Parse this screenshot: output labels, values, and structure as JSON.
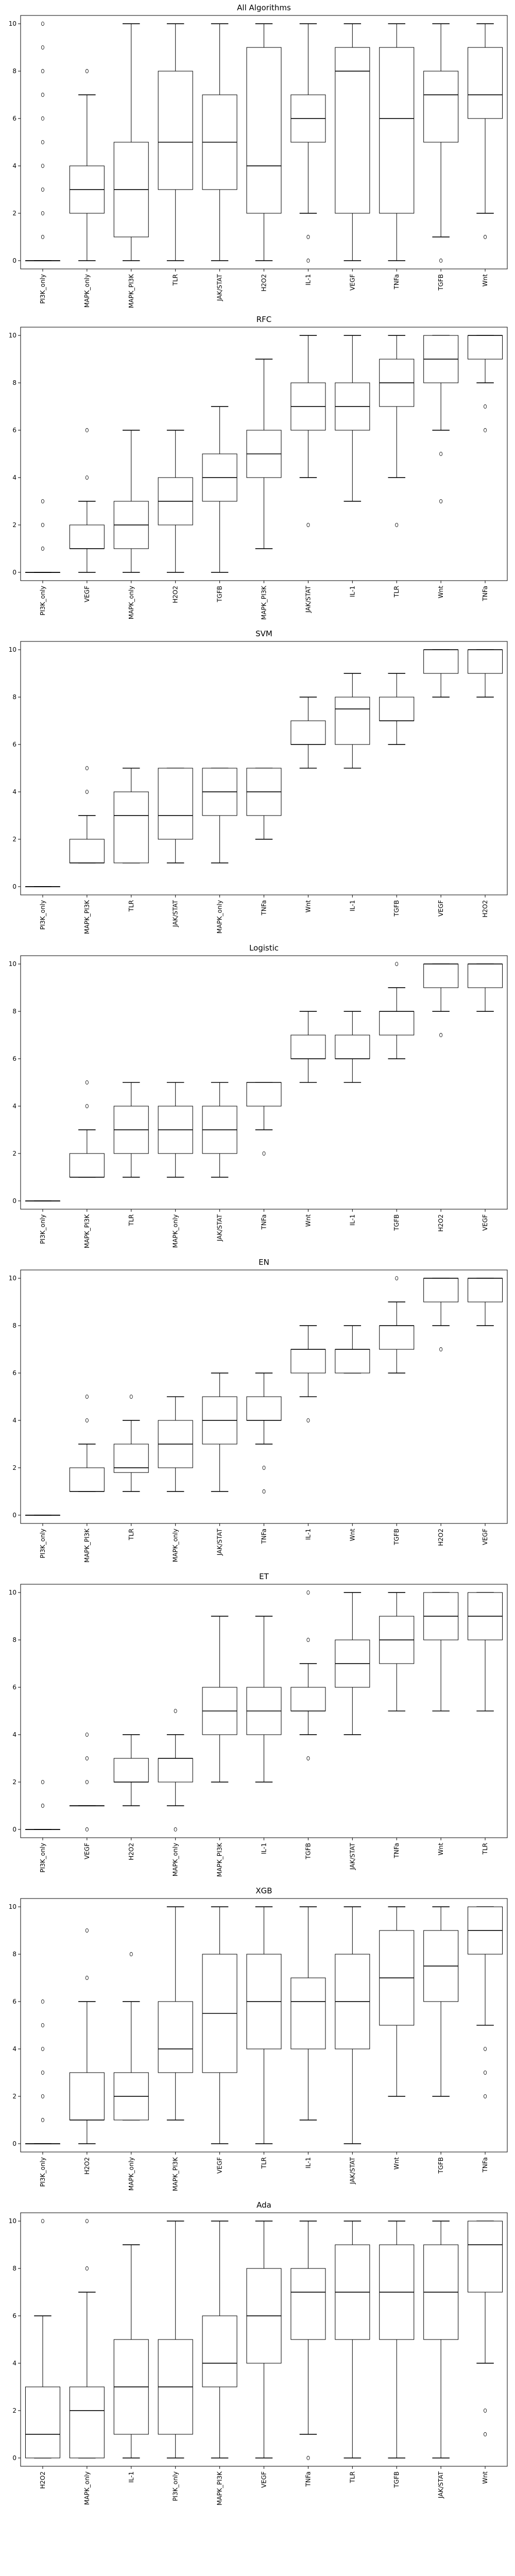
{
  "chart_data": [
    {
      "type": "box",
      "title": "All Algorithms",
      "ylim": [
        0,
        10
      ],
      "yticks": [
        "0",
        "2",
        "4",
        "6",
        "8",
        "10"
      ],
      "categories": [
        "PI3K_only",
        "MAPK_only",
        "MAPK_PI3K",
        "TLR",
        "JAK/STAT",
        "H2O2",
        "IL-1",
        "VEGF",
        "TNFa",
        "TGFB",
        "Wnt"
      ],
      "boxes": [
        {
          "whislo": 0,
          "q1": 0,
          "med": 0,
          "q3": 0,
          "whishi": 0,
          "fliers": [
            1,
            2,
            3,
            4,
            5,
            6,
            7,
            8,
            9,
            10
          ]
        },
        {
          "whislo": 0,
          "q1": 2,
          "med": 3,
          "q3": 4,
          "whishi": 7,
          "fliers": [
            8
          ]
        },
        {
          "whislo": 0,
          "q1": 1,
          "med": 3,
          "q3": 5,
          "whishi": 10,
          "fliers": []
        },
        {
          "whislo": 0,
          "q1": 3,
          "med": 5,
          "q3": 8,
          "whishi": 10,
          "fliers": []
        },
        {
          "whislo": 0,
          "q1": 3,
          "med": 5,
          "q3": 7,
          "whishi": 10,
          "fliers": []
        },
        {
          "whislo": 0,
          "q1": 2,
          "med": 4,
          "q3": 9,
          "whishi": 10,
          "fliers": []
        },
        {
          "whislo": 2,
          "q1": 5,
          "med": 6,
          "q3": 7,
          "whishi": 10,
          "fliers": [
            0,
            1
          ]
        },
        {
          "whislo": 0,
          "q1": 2,
          "med": 8,
          "q3": 9,
          "whishi": 10,
          "fliers": []
        },
        {
          "whislo": 0,
          "q1": 2,
          "med": 6,
          "q3": 9,
          "whishi": 10,
          "fliers": []
        },
        {
          "whislo": 1,
          "q1": 5,
          "med": 7,
          "q3": 8,
          "whishi": 10,
          "fliers": [
            0
          ]
        },
        {
          "whislo": 2,
          "q1": 6,
          "med": 7,
          "q3": 9,
          "whishi": 10,
          "fliers": [
            1
          ]
        }
      ]
    },
    {
      "type": "box",
      "title": "RFC",
      "ylim": [
        0,
        10
      ],
      "yticks": [
        "0",
        "2",
        "4",
        "6",
        "8",
        "10"
      ],
      "categories": [
        "PI3K_only",
        "VEGF",
        "MAPK_only",
        "H2O2",
        "TGFB",
        "MAPK_PI3K",
        "JAK/STAT",
        "IL-1",
        "TLR",
        "Wnt",
        "TNFa"
      ],
      "boxes": [
        {
          "whislo": 0,
          "q1": 0,
          "med": 0,
          "q3": 0,
          "whishi": 0,
          "fliers": [
            1,
            2,
            3
          ]
        },
        {
          "whislo": 0,
          "q1": 1,
          "med": 1,
          "q3": 2,
          "whishi": 3,
          "fliers": [
            4,
            6
          ]
        },
        {
          "whislo": 0,
          "q1": 1,
          "med": 2,
          "q3": 3,
          "whishi": 6,
          "fliers": []
        },
        {
          "whislo": 0,
          "q1": 2,
          "med": 3,
          "q3": 4,
          "whishi": 6,
          "fliers": []
        },
        {
          "whislo": 0,
          "q1": 3,
          "med": 4,
          "q3": 5,
          "whishi": 7,
          "fliers": []
        },
        {
          "whislo": 1,
          "q1": 4,
          "med": 5,
          "q3": 6,
          "whishi": 9,
          "fliers": []
        },
        {
          "whislo": 4,
          "q1": 6,
          "med": 7,
          "q3": 8,
          "whishi": 10,
          "fliers": [
            2
          ]
        },
        {
          "whislo": 3,
          "q1": 6,
          "med": 7,
          "q3": 8,
          "whishi": 10,
          "fliers": []
        },
        {
          "whislo": 4,
          "q1": 7,
          "med": 8,
          "q3": 9,
          "whishi": 10,
          "fliers": [
            2
          ]
        },
        {
          "whislo": 6,
          "q1": 8,
          "med": 9,
          "q3": 10,
          "whishi": 10,
          "fliers": [
            3,
            5
          ]
        },
        {
          "whislo": 8,
          "q1": 9,
          "med": 10,
          "q3": 10,
          "whishi": 10,
          "fliers": [
            6,
            7
          ]
        }
      ]
    },
    {
      "type": "box",
      "title": "SVM",
      "ylim": [
        0,
        10
      ],
      "yticks": [
        "0",
        "2",
        "4",
        "6",
        "8",
        "10"
      ],
      "categories": [
        "PI3K_only",
        "MAPK_PI3K",
        "TLR",
        "JAK/STAT",
        "MAPK_only",
        "TNFa",
        "Wnt",
        "IL-1",
        "TGFB",
        "VEGF",
        "H2O2"
      ],
      "boxes": [
        {
          "whislo": 0,
          "q1": 0,
          "med": 0,
          "q3": 0,
          "whishi": 0,
          "fliers": []
        },
        {
          "whislo": 1,
          "q1": 1,
          "med": 1,
          "q3": 2,
          "whishi": 3,
          "fliers": [
            4,
            5
          ]
        },
        {
          "whislo": 1,
          "q1": 1,
          "med": 3,
          "q3": 4,
          "whishi": 5,
          "fliers": []
        },
        {
          "whislo": 1,
          "q1": 2,
          "med": 3,
          "q3": 5,
          "whishi": 5,
          "fliers": []
        },
        {
          "whislo": 1,
          "q1": 3,
          "med": 4,
          "q3": 5,
          "whishi": 5,
          "fliers": []
        },
        {
          "whislo": 2,
          "q1": 3,
          "med": 4,
          "q3": 5,
          "whishi": 5,
          "fliers": []
        },
        {
          "whislo": 5,
          "q1": 6,
          "med": 6,
          "q3": 7,
          "whishi": 8,
          "fliers": []
        },
        {
          "whislo": 5,
          "q1": 6,
          "med": 7.5,
          "q3": 8,
          "whishi": 9,
          "fliers": []
        },
        {
          "whislo": 6,
          "q1": 7,
          "med": 7,
          "q3": 8,
          "whishi": 9,
          "fliers": []
        },
        {
          "whislo": 8,
          "q1": 9,
          "med": 10,
          "q3": 10,
          "whishi": 10,
          "fliers": []
        },
        {
          "whislo": 8,
          "q1": 9,
          "med": 10,
          "q3": 10,
          "whishi": 10,
          "fliers": []
        }
      ]
    },
    {
      "type": "box",
      "title": "Logistic",
      "ylim": [
        0,
        10
      ],
      "yticks": [
        "0",
        "2",
        "4",
        "6",
        "8",
        "10"
      ],
      "categories": [
        "PI3K_only",
        "MAPK_PI3K",
        "TLR",
        "MAPK_only",
        "JAK/STAT",
        "TNFa",
        "Wnt",
        "IL-1",
        "TGFB",
        "H2O2",
        "VEGF"
      ],
      "boxes": [
        {
          "whislo": 0,
          "q1": 0,
          "med": 0,
          "q3": 0,
          "whishi": 0,
          "fliers": []
        },
        {
          "whislo": 1,
          "q1": 1,
          "med": 1,
          "q3": 2,
          "whishi": 3,
          "fliers": [
            4,
            5
          ]
        },
        {
          "whislo": 1,
          "q1": 2,
          "med": 3,
          "q3": 4,
          "whishi": 5,
          "fliers": []
        },
        {
          "whislo": 1,
          "q1": 2,
          "med": 3,
          "q3": 4,
          "whishi": 5,
          "fliers": []
        },
        {
          "whislo": 1,
          "q1": 2,
          "med": 3,
          "q3": 4,
          "whishi": 5,
          "fliers": []
        },
        {
          "whislo": 3,
          "q1": 4,
          "med": 5,
          "q3": 5,
          "whishi": 5,
          "fliers": [
            2
          ]
        },
        {
          "whislo": 5,
          "q1": 6,
          "med": 6,
          "q3": 7,
          "whishi": 8,
          "fliers": []
        },
        {
          "whislo": 5,
          "q1": 6,
          "med": 6,
          "q3": 7,
          "whishi": 8,
          "fliers": []
        },
        {
          "whislo": 6,
          "q1": 7,
          "med": 8,
          "q3": 8,
          "whishi": 9,
          "fliers": [
            10
          ]
        },
        {
          "whislo": 8,
          "q1": 9,
          "med": 10,
          "q3": 10,
          "whishi": 10,
          "fliers": [
            7
          ]
        },
        {
          "whislo": 8,
          "q1": 9,
          "med": 10,
          "q3": 10,
          "whishi": 10,
          "fliers": []
        }
      ]
    },
    {
      "type": "box",
      "title": "EN",
      "ylim": [
        0,
        10
      ],
      "yticks": [
        "0",
        "2",
        "4",
        "6",
        "8",
        "10"
      ],
      "categories": [
        "PI3K_only",
        "MAPK_PI3K",
        "TLR",
        "MAPK_only",
        "JAK/STAT",
        "TNFa",
        "IL-1",
        "Wnt",
        "TGFB",
        "H2O2",
        "VEGF"
      ],
      "boxes": [
        {
          "whislo": 0,
          "q1": 0,
          "med": 0,
          "q3": 0,
          "whishi": 0,
          "fliers": []
        },
        {
          "whislo": 1,
          "q1": 1,
          "med": 1,
          "q3": 2,
          "whishi": 3,
          "fliers": [
            4,
            5
          ]
        },
        {
          "whislo": 1,
          "q1": 1.8,
          "med": 2,
          "q3": 3,
          "whishi": 4,
          "fliers": [
            5
          ]
        },
        {
          "whislo": 1,
          "q1": 2,
          "med": 3,
          "q3": 4,
          "whishi": 5,
          "fliers": []
        },
        {
          "whislo": 1,
          "q1": 3,
          "med": 4,
          "q3": 5,
          "whishi": 6,
          "fliers": []
        },
        {
          "whislo": 3,
          "q1": 4,
          "med": 4,
          "q3": 5,
          "whishi": 6,
          "fliers": [
            1,
            2
          ]
        },
        {
          "whislo": 5,
          "q1": 6,
          "med": 7,
          "q3": 7,
          "whishi": 8,
          "fliers": [
            4
          ]
        },
        {
          "whislo": 6,
          "q1": 6,
          "med": 7,
          "q3": 7,
          "whishi": 8,
          "fliers": []
        },
        {
          "whislo": 6,
          "q1": 7,
          "med": 8,
          "q3": 8,
          "whishi": 9,
          "fliers": [
            10
          ]
        },
        {
          "whislo": 8,
          "q1": 9,
          "med": 10,
          "q3": 10,
          "whishi": 10,
          "fliers": [
            7
          ]
        },
        {
          "whislo": 8,
          "q1": 9,
          "med": 10,
          "q3": 10,
          "whishi": 10,
          "fliers": []
        }
      ]
    },
    {
      "type": "box",
      "title": "ET",
      "ylim": [
        0,
        10
      ],
      "yticks": [
        "0",
        "2",
        "4",
        "6",
        "8",
        "10"
      ],
      "categories": [
        "PI3K_only",
        "VEGF",
        "H2O2",
        "MAPK_only",
        "MAPK_PI3K",
        "IL-1",
        "TGFB",
        "JAK/STAT",
        "TNFa",
        "Wnt",
        "TLR"
      ],
      "boxes": [
        {
          "whislo": 0,
          "q1": 0,
          "med": 0,
          "q3": 0,
          "whishi": 0,
          "fliers": [
            1,
            2
          ]
        },
        {
          "whislo": 1,
          "q1": 1,
          "med": 1,
          "q3": 1,
          "whishi": 1,
          "fliers": [
            0,
            2,
            3,
            4
          ]
        },
        {
          "whislo": 1,
          "q1": 2,
          "med": 2,
          "q3": 3,
          "whishi": 4,
          "fliers": []
        },
        {
          "whislo": 1,
          "q1": 2,
          "med": 3,
          "q3": 3,
          "whishi": 4,
          "fliers": [
            0,
            5
          ]
        },
        {
          "whislo": 2,
          "q1": 4,
          "med": 5,
          "q3": 6,
          "whishi": 9,
          "fliers": []
        },
        {
          "whislo": 2,
          "q1": 4,
          "med": 5,
          "q3": 6,
          "whishi": 9,
          "fliers": []
        },
        {
          "whislo": 4,
          "q1": 5,
          "med": 5,
          "q3": 6,
          "whishi": 7,
          "fliers": [
            3,
            8,
            10
          ]
        },
        {
          "whislo": 4,
          "q1": 6,
          "med": 7,
          "q3": 8,
          "whishi": 10,
          "fliers": []
        },
        {
          "whislo": 5,
          "q1": 7,
          "med": 8,
          "q3": 9,
          "whishi": 10,
          "fliers": []
        },
        {
          "whislo": 5,
          "q1": 8,
          "med": 9,
          "q3": 10,
          "whishi": 10,
          "fliers": []
        },
        {
          "whislo": 5,
          "q1": 8,
          "med": 9,
          "q3": 10,
          "whishi": 10,
          "fliers": []
        }
      ]
    },
    {
      "type": "box",
      "title": "XGB",
      "ylim": [
        0,
        10
      ],
      "yticks": [
        "0",
        "2",
        "4",
        "6",
        "8",
        "10"
      ],
      "categories": [
        "PI3K_only",
        "H2O2",
        "MAPK_only",
        "MAPK_PI3K",
        "VEGF",
        "TLR",
        "IL-1",
        "JAK/STAT",
        "Wnt",
        "TGFB",
        "TNFa"
      ],
      "boxes": [
        {
          "whislo": 0,
          "q1": 0,
          "med": 0,
          "q3": 0,
          "whishi": 0,
          "fliers": [
            1,
            2,
            3,
            4,
            5,
            6
          ]
        },
        {
          "whislo": 0,
          "q1": 1,
          "med": 1,
          "q3": 3,
          "whishi": 6,
          "fliers": [
            7,
            9
          ]
        },
        {
          "whislo": 1,
          "q1": 1,
          "med": 2,
          "q3": 3,
          "whishi": 6,
          "fliers": [
            8
          ]
        },
        {
          "whislo": 1,
          "q1": 3,
          "med": 4,
          "q3": 6,
          "whishi": 10,
          "fliers": []
        },
        {
          "whislo": 0,
          "q1": 3,
          "med": 5.5,
          "q3": 8,
          "whishi": 10,
          "fliers": []
        },
        {
          "whislo": 0,
          "q1": 4,
          "med": 6,
          "q3": 8,
          "whishi": 10,
          "fliers": []
        },
        {
          "whislo": 1,
          "q1": 4,
          "med": 6,
          "q3": 7,
          "whishi": 10,
          "fliers": []
        },
        {
          "whislo": 0,
          "q1": 4,
          "med": 6,
          "q3": 8,
          "whishi": 10,
          "fliers": []
        },
        {
          "whislo": 2,
          "q1": 5,
          "med": 7,
          "q3": 9,
          "whishi": 10,
          "fliers": []
        },
        {
          "whislo": 2,
          "q1": 6,
          "med": 7.5,
          "q3": 9,
          "whishi": 10,
          "fliers": []
        },
        {
          "whislo": 5,
          "q1": 8,
          "med": 9,
          "q3": 10,
          "whishi": 10,
          "fliers": [
            2,
            3,
            4
          ]
        }
      ]
    },
    {
      "type": "box",
      "title": "Ada",
      "ylim": [
        0,
        10
      ],
      "yticks": [
        "0",
        "2",
        "4",
        "6",
        "8",
        "10"
      ],
      "categories": [
        "H2O2",
        "MAPK_only",
        "IL-1",
        "PI3K_only",
        "MAPK_PI3K",
        "VEGF",
        "TNFa",
        "TLR",
        "TGFB",
        "JAK/STAT",
        "Wnt"
      ],
      "boxes": [
        {
          "whislo": 0,
          "q1": 0,
          "med": 1,
          "q3": 3,
          "whishi": 6,
          "fliers": [
            10
          ]
        },
        {
          "whislo": 0,
          "q1": 0,
          "med": 2,
          "q3": 3,
          "whishi": 7,
          "fliers": [
            8,
            10
          ]
        },
        {
          "whislo": 0,
          "q1": 1,
          "med": 3,
          "q3": 5,
          "whishi": 9,
          "fliers": []
        },
        {
          "whislo": 0,
          "q1": 1,
          "med": 3,
          "q3": 5,
          "whishi": 10,
          "fliers": []
        },
        {
          "whislo": 0,
          "q1": 3,
          "med": 4,
          "q3": 6,
          "whishi": 10,
          "fliers": []
        },
        {
          "whislo": 0,
          "q1": 4,
          "med": 6,
          "q3": 8,
          "whishi": 10,
          "fliers": []
        },
        {
          "whislo": 1,
          "q1": 5,
          "med": 7,
          "q3": 8,
          "whishi": 10,
          "fliers": [
            0
          ]
        },
        {
          "whislo": 0,
          "q1": 5,
          "med": 7,
          "q3": 9,
          "whishi": 10,
          "fliers": []
        },
        {
          "whislo": 0,
          "q1": 5,
          "med": 7,
          "q3": 9,
          "whishi": 10,
          "fliers": []
        },
        {
          "whislo": 0,
          "q1": 5,
          "med": 7,
          "q3": 9,
          "whishi": 10,
          "fliers": []
        },
        {
          "whislo": 4,
          "q1": 7,
          "med": 9,
          "q3": 10,
          "whishi": 10,
          "fliers": [
            1,
            2
          ]
        }
      ]
    }
  ]
}
